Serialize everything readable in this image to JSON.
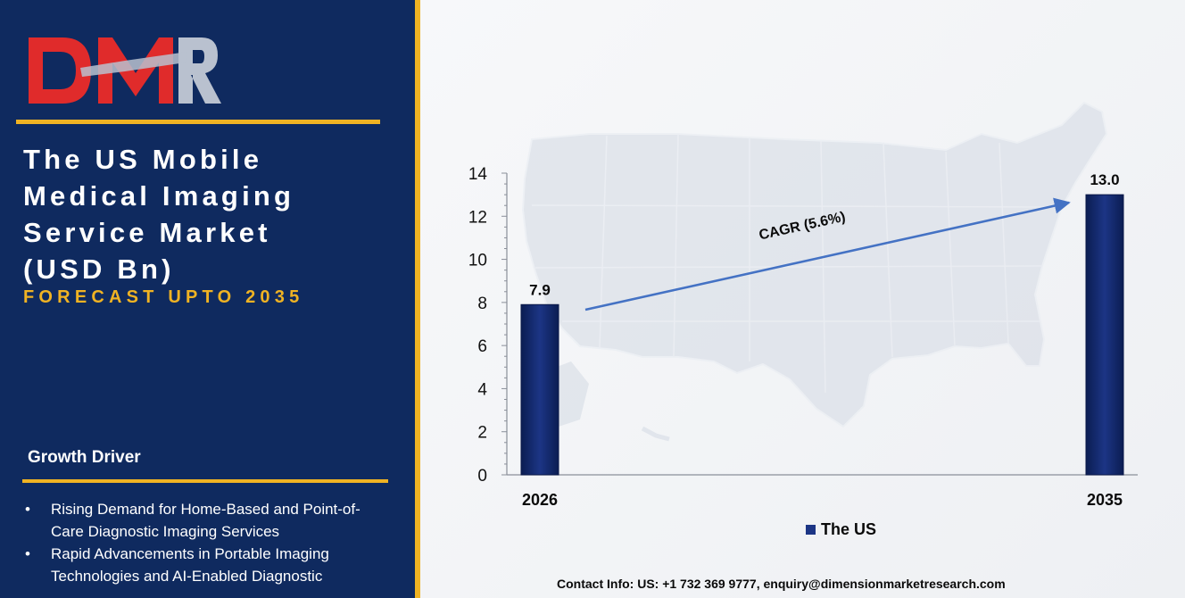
{
  "brand": {
    "logo_text": "DMR",
    "colors": {
      "navy": "#0f2a5f",
      "gold": "#f0b323",
      "red": "#e02b2b",
      "gray": "#b9c1cf"
    }
  },
  "sidebar": {
    "title_lines": [
      "The US Mobile",
      "Medical Imaging",
      "Service Market",
      "(USD Bn)"
    ],
    "subtitle": "FORECAST UPTO 2035",
    "growth_driver_heading": "Growth Driver",
    "growth_drivers": [
      "Rising Demand for Home-Based and Point-of-Care Diagnostic Imaging Services",
      "Rapid Advancements in Portable Imaging Technologies and AI-Enabled Diagnostic"
    ]
  },
  "chart_data": {
    "type": "bar",
    "categories": [
      "2026",
      "2035"
    ],
    "series": [
      {
        "name": "The US",
        "values": [
          7.9,
          13.0
        ],
        "color": "#14286b"
      }
    ],
    "data_labels": [
      "7.9",
      "13.0"
    ],
    "y_ticks": [
      "0",
      "2",
      "4",
      "6",
      "8",
      "10",
      "12",
      "14"
    ],
    "ylim": [
      0,
      14
    ],
    "grid": false,
    "legend_position": "bottom",
    "annotation": {
      "text": "CAGR (5.6%)",
      "arrow_color": "#4472c4"
    },
    "background": "US map silhouette"
  },
  "footer": {
    "contact": "Contact Info: US: +1 732 369 9777, enquiry@dimensionmarketresearch.com"
  }
}
